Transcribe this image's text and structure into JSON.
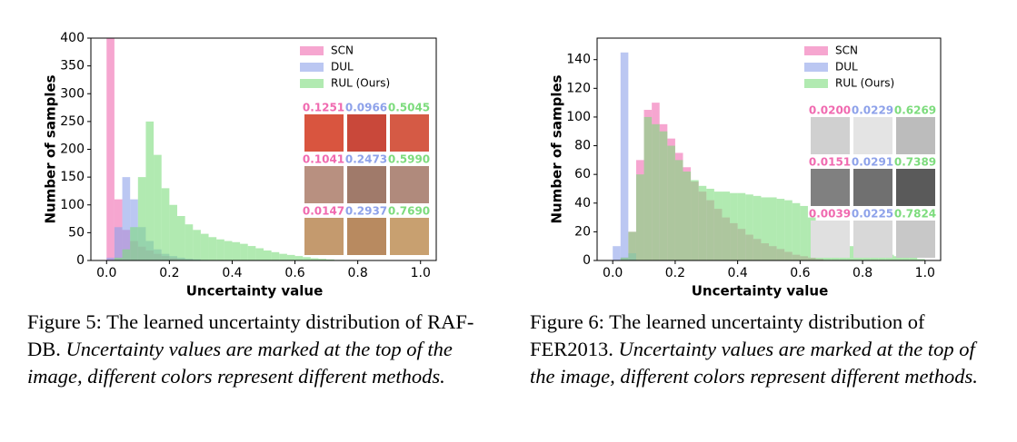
{
  "chart_data": [
    {
      "type": "histogram",
      "xlabel": "Uncertainty value",
      "ylabel": "Number of samples",
      "bins": [
        0,
        0.025,
        0.05,
        0.075,
        0.1,
        0.125,
        0.15,
        0.175,
        0.2,
        0.225,
        0.25,
        0.275,
        0.3,
        0.325,
        0.35,
        0.375,
        0.4,
        0.425,
        0.45,
        0.475,
        0.5,
        0.525,
        0.55,
        0.575,
        0.6,
        0.625,
        0.65,
        0.675,
        0.7,
        0.725,
        0.75,
        0.775,
        0.8
      ],
      "series": [
        {
          "name": "SCN",
          "color": "#f06ab0",
          "values": [
            400,
            110,
            55,
            35,
            25,
            18,
            12,
            8,
            5,
            3,
            2,
            1,
            0,
            0,
            0,
            0,
            0,
            0,
            0,
            0,
            0,
            0,
            0,
            0,
            0,
            0,
            0,
            0,
            0,
            0,
            0,
            0
          ]
        },
        {
          "name": "DUL",
          "color": "#8ea2ea",
          "values": [
            5,
            60,
            150,
            110,
            60,
            35,
            20,
            12,
            8,
            5,
            3,
            2,
            1,
            0,
            0,
            0,
            0,
            0,
            0,
            0,
            0,
            0,
            0,
            0,
            0,
            0,
            0,
            0,
            0,
            0,
            0,
            0
          ]
        },
        {
          "name": "RUL (Ours)",
          "color": "#7ddc7d",
          "values": [
            0,
            5,
            20,
            60,
            150,
            250,
            190,
            130,
            100,
            80,
            65,
            55,
            48,
            42,
            38,
            35,
            33,
            30,
            26,
            22,
            18,
            15,
            12,
            10,
            8,
            6,
            4,
            3,
            2,
            1,
            1,
            0
          ]
        }
      ],
      "xlim": [
        -0.05,
        1.05
      ],
      "xticks": [
        {
          "value": 0,
          "label": "0.0"
        },
        0.2,
        0.4,
        0.6,
        0.8,
        {
          "value": 1,
          "label": "1.0"
        }
      ],
      "ylim": [
        0,
        400
      ],
      "yticks": [
        0,
        50,
        100,
        150,
        200,
        250,
        300,
        350,
        400
      ],
      "legend": "upper right",
      "thumbnail_labels": [
        [
          "0.1251",
          "0.0966",
          "0.5045"
        ],
        [
          "0.1041",
          "0.2473",
          "0.5990"
        ],
        [
          "0.0147",
          "0.2937",
          "0.7690"
        ]
      ]
    },
    {
      "type": "histogram",
      "xlabel": "Uncertainty value",
      "ylabel": "Number of samples",
      "bins": [
        0,
        0.025,
        0.05,
        0.075,
        0.1,
        0.125,
        0.15,
        0.175,
        0.2,
        0.225,
        0.25,
        0.275,
        0.3,
        0.325,
        0.35,
        0.375,
        0.4,
        0.425,
        0.45,
        0.475,
        0.5,
        0.525,
        0.55,
        0.575,
        0.6,
        0.625,
        0.65,
        0.675,
        0.7,
        0.725,
        0.75,
        0.775,
        0.8,
        0.825,
        0.85,
        0.875,
        0.9,
        0.925,
        0.95,
        0.975,
        1.0
      ],
      "series": [
        {
          "name": "SCN",
          "color": "#f06ab0",
          "values": [
            0,
            2,
            20,
            70,
            105,
            110,
            95,
            85,
            75,
            65,
            55,
            48,
            42,
            36,
            30,
            26,
            22,
            18,
            15,
            12,
            10,
            8,
            6,
            4,
            3,
            2,
            1,
            0,
            0,
            0,
            0,
            0,
            0,
            0,
            0,
            0,
            0,
            0,
            0,
            0
          ]
        },
        {
          "name": "DUL",
          "color": "#8ea2ea",
          "values": [
            10,
            145,
            5,
            0,
            0,
            0,
            0,
            0,
            0,
            0,
            0,
            0,
            0,
            0,
            0,
            0,
            0,
            0,
            0,
            0,
            0,
            0,
            0,
            0,
            0,
            0,
            0,
            0,
            0,
            0,
            0,
            0,
            0,
            0,
            0,
            0,
            0,
            0,
            0,
            0
          ]
        },
        {
          "name": "RUL (Ours)",
          "color": "#7ddc7d",
          "values": [
            0,
            2,
            20,
            60,
            100,
            95,
            90,
            80,
            70,
            62,
            56,
            52,
            50,
            48,
            48,
            47,
            47,
            46,
            45,
            44,
            44,
            43,
            42,
            40,
            38,
            30,
            22,
            18,
            15,
            12,
            10,
            8,
            7,
            6,
            5,
            4,
            3,
            3,
            2,
            1
          ]
        }
      ],
      "xlim": [
        -0.05,
        1.05
      ],
      "xticks": [
        {
          "value": 0,
          "label": "0.0"
        },
        0.2,
        0.4,
        0.6,
        0.8,
        {
          "value": 1,
          "label": "1.0"
        }
      ],
      "ylim": [
        0,
        155
      ],
      "yticks": [
        0,
        20,
        40,
        60,
        80,
        100,
        120,
        140
      ],
      "legend": "upper right",
      "thumbnail_labels": [
        [
          "0.0200",
          "0.0229",
          "0.6269"
        ],
        [
          "0.0151",
          "0.0291",
          "0.7389"
        ],
        [
          "0.0039",
          "0.0225",
          "0.7824"
        ]
      ]
    }
  ],
  "captions": [
    {
      "label": "Figure 5:",
      "text": "The learned uncertainty distribution of RAF-DB.",
      "italic": "Uncertainty values are marked at the top of the image, different colors represent different methods."
    },
    {
      "label": "Figure 6:",
      "text": "The learned uncertainty distribution of FER2013.",
      "italic": "Uncertainty values are marked at the top of the image, different colors represent different methods."
    }
  ]
}
